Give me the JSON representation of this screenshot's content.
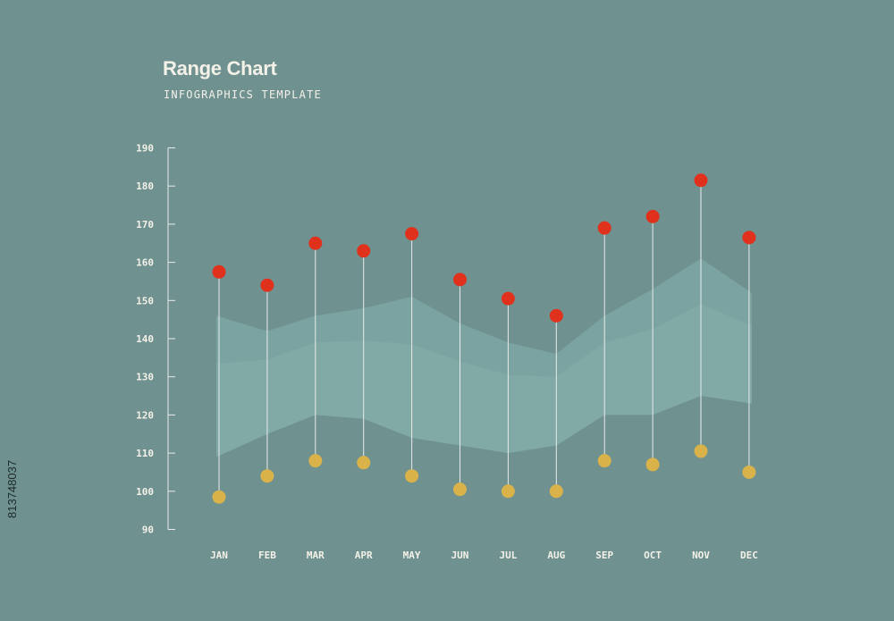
{
  "header": {
    "title": "Range Chart",
    "subtitle": "INFOGRAPHICS TEMPLATE"
  },
  "side_text": "813748037",
  "colors": {
    "background": "#6f9190",
    "high_marker": "#e0311c",
    "low_marker": "#d9b24a",
    "band_outer": "#7ba3a1",
    "band_inner": "#87aeac",
    "line": "#e8ecea"
  },
  "chart_data": {
    "type": "range",
    "categories": [
      "JAN",
      "FEB",
      "MAR",
      "APR",
      "MAY",
      "JUN",
      "JUL",
      "AUG",
      "SEP",
      "OCT",
      "NOV",
      "DEC"
    ],
    "series": [
      {
        "values": [
          157.5,
          154,
          165,
          163,
          167.5,
          155.5,
          150.5,
          146,
          169,
          172,
          181.5,
          166.5
        ]
      },
      {
        "values": [
          98.5,
          104,
          108,
          107.5,
          104,
          100.5,
          100,
          100,
          108,
          107,
          110.5,
          105
        ]
      }
    ],
    "band_upper": [
      146,
      142,
      146,
      148,
      151,
      144,
      139,
      136,
      146,
      153,
      161,
      152
    ],
    "band_lower": [
      109,
      115,
      120,
      119,
      114,
      112,
      110,
      112,
      120,
      120,
      125,
      123
    ],
    "yticks": [
      90,
      100,
      110,
      120,
      130,
      140,
      150,
      160,
      170,
      180,
      190
    ],
    "ylim": [
      90,
      190
    ],
    "grid": false,
    "legend": "none"
  }
}
